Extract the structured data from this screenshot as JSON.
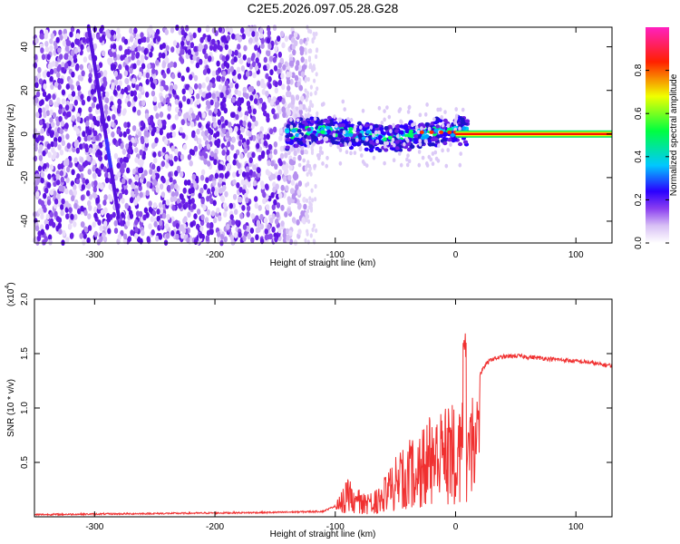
{
  "chart_data": [
    {
      "type": "heatmap",
      "title": "C2E5.2026.097.05.28.G28",
      "xlabel": "Height of straight line (km)",
      "ylabel": "Frequency (Hz)",
      "xlim": [
        -350,
        130
      ],
      "ylim": [
        -50,
        49
      ],
      "x_ticks": [
        -300,
        -200,
        -100,
        0,
        100
      ],
      "y_ticks": [
        -40,
        -20,
        0,
        20,
        40
      ],
      "colorbar": {
        "label": "Normalized spectral amplitude",
        "range": [
          0,
          1
        ],
        "ticks": [
          "0.0",
          "0.2",
          "0.4",
          "0.6",
          "0.8"
        ],
        "colors": [
          "#ffffff",
          "#c8a8f0",
          "#7a2be0",
          "#2a00ff",
          "#00c8ff",
          "#00ff40",
          "#f0ff00",
          "#ff0000",
          "#ff00c0"
        ]
      },
      "regions": [
        {
          "name": "scattered noise",
          "x_range": [
            -350,
            -125
          ],
          "freq_range": [
            -50,
            49
          ],
          "amplitude": 0.15
        },
        {
          "name": "diagonal streak",
          "from": [
            -305,
            49
          ],
          "to": [
            -280,
            -38
          ],
          "amplitude": 0.25
        },
        {
          "name": "signal band",
          "x_range": [
            -140,
            10
          ],
          "freq_range": [
            -5,
            8
          ],
          "amplitude": 0.35
        },
        {
          "name": "tone",
          "x_range": [
            0,
            130
          ],
          "freq": 0,
          "amplitude": 0.9
        }
      ]
    },
    {
      "type": "line",
      "xlabel": "Height of straight line (km)",
      "ylabel": "SNR (10 * v/v)",
      "y_multiplier": "(x10",
      "y_multiplier_exp": "4",
      "xlim": [
        -350,
        130
      ],
      "ylim": [
        0,
        2.0
      ],
      "x_ticks": [
        -300,
        -200,
        -100,
        0,
        100
      ],
      "y_ticks": [
        "0.5",
        "1.0",
        "1.5",
        "2.0"
      ],
      "color": "#f03030",
      "series": [
        {
          "name": "SNR",
          "x": [
            -350,
            -300,
            -250,
            -200,
            -150,
            -110,
            -100,
            -95,
            -90,
            -85,
            -80,
            -75,
            -70,
            -65,
            -60,
            -55,
            -50,
            -45,
            -40,
            -35,
            -30,
            -25,
            -20,
            -15,
            -10,
            -5,
            0,
            5,
            8,
            10,
            12,
            15,
            20,
            25,
            30,
            35,
            40,
            50,
            60,
            70,
            80,
            90,
            100,
            110,
            120,
            130
          ],
          "y": [
            0.02,
            0.025,
            0.03,
            0.035,
            0.04,
            0.05,
            0.1,
            0.25,
            0.35,
            0.3,
            0.25,
            0.2,
            0.3,
            0.25,
            0.35,
            0.45,
            0.55,
            0.6,
            0.7,
            0.75,
            0.8,
            0.9,
            1.0,
            1.05,
            0.95,
            1.1,
            1.05,
            1.1,
            1.6,
            1.0,
            1.1,
            1.2,
            1.3,
            1.4,
            1.45,
            1.46,
            1.47,
            1.48,
            1.47,
            1.46,
            1.45,
            1.44,
            1.43,
            1.42,
            1.4,
            1.39
          ]
        }
      ]
    }
  ]
}
